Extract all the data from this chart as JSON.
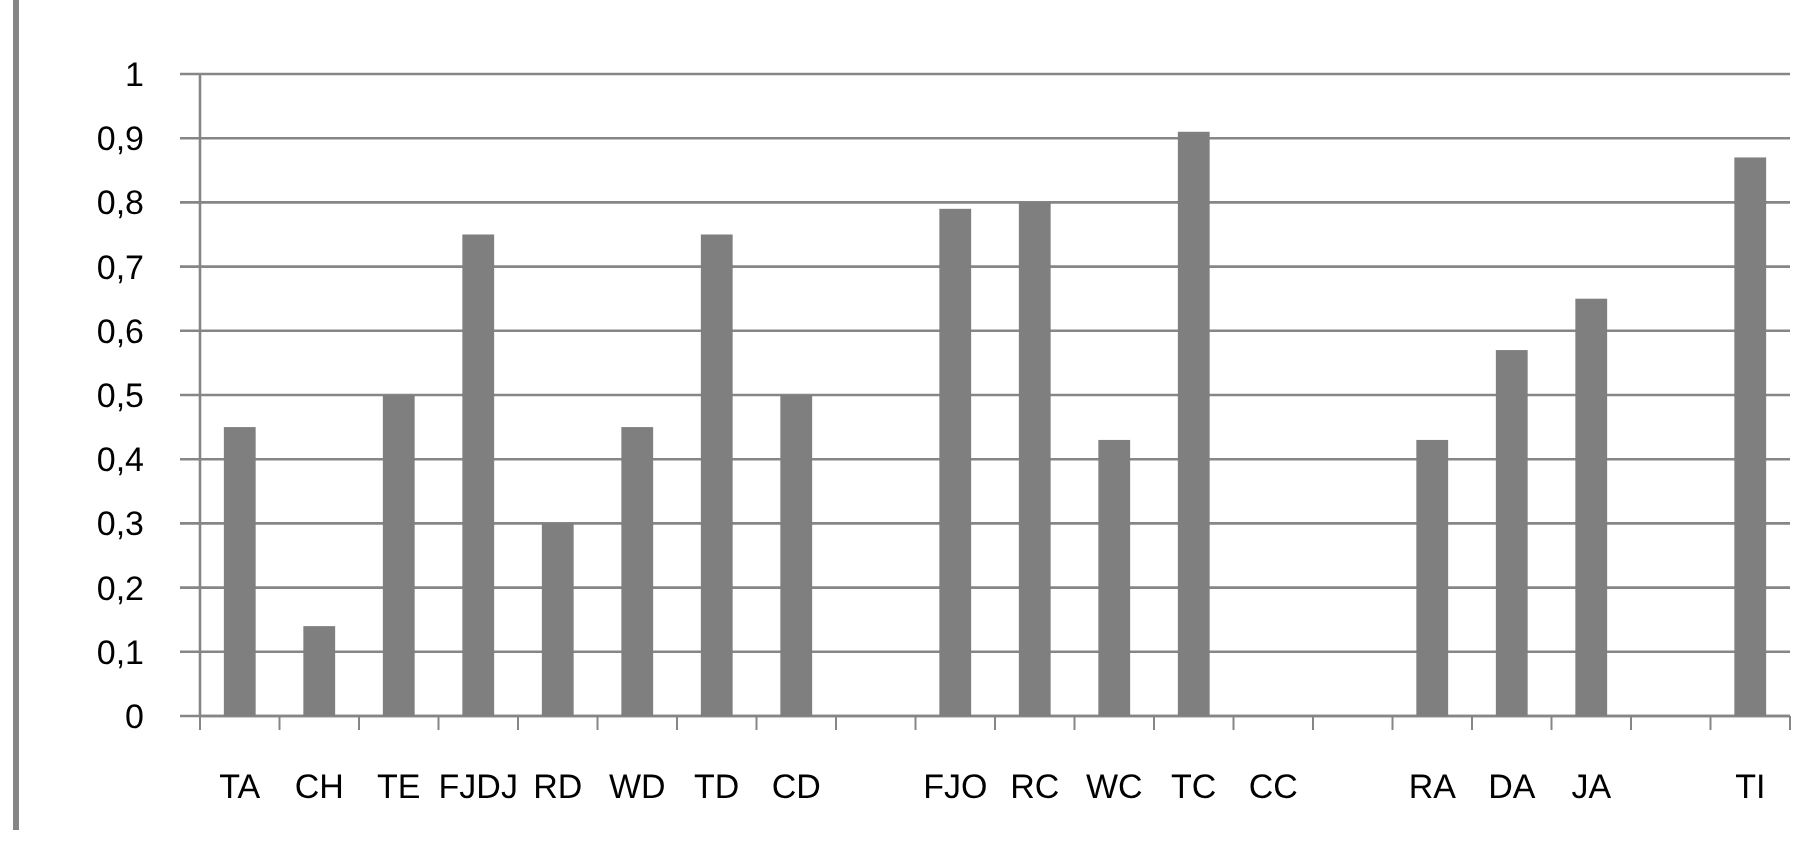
{
  "chart_data": {
    "type": "bar",
    "categories": [
      "TA",
      "CH",
      "TE",
      "FJDJ",
      "RD",
      "WD",
      "TD",
      "CD",
      null,
      "FJO",
      "RC",
      "WC",
      "TC",
      "CC",
      null,
      "RA",
      "DA",
      "JA",
      null,
      "TI"
    ],
    "values": [
      0.45,
      0.14,
      0.5,
      0.75,
      0.3,
      0.45,
      0.75,
      0.5,
      null,
      0.79,
      0.8,
      0.43,
      0.91,
      null,
      null,
      0.43,
      0.57,
      0.65,
      null,
      0.87
    ],
    "color": "#7f7f7f",
    "ylim": [
      0,
      1
    ],
    "yticks": [
      0,
      {
        "value": 0.1,
        "label": "0,1"
      },
      {
        "value": 0.2,
        "label": "0,2"
      },
      {
        "value": 0.3,
        "label": "0,3"
      },
      {
        "value": 0.4,
        "label": "0,4"
      },
      {
        "value": 0.5,
        "label": "0,5"
      },
      {
        "value": 0.6,
        "label": "0,6"
      },
      {
        "value": 0.7,
        "label": "0,7"
      },
      {
        "value": 0.8,
        "label": "0,8"
      },
      {
        "value": 0.9,
        "label": "0,9"
      },
      1
    ],
    "grid": "y"
  }
}
